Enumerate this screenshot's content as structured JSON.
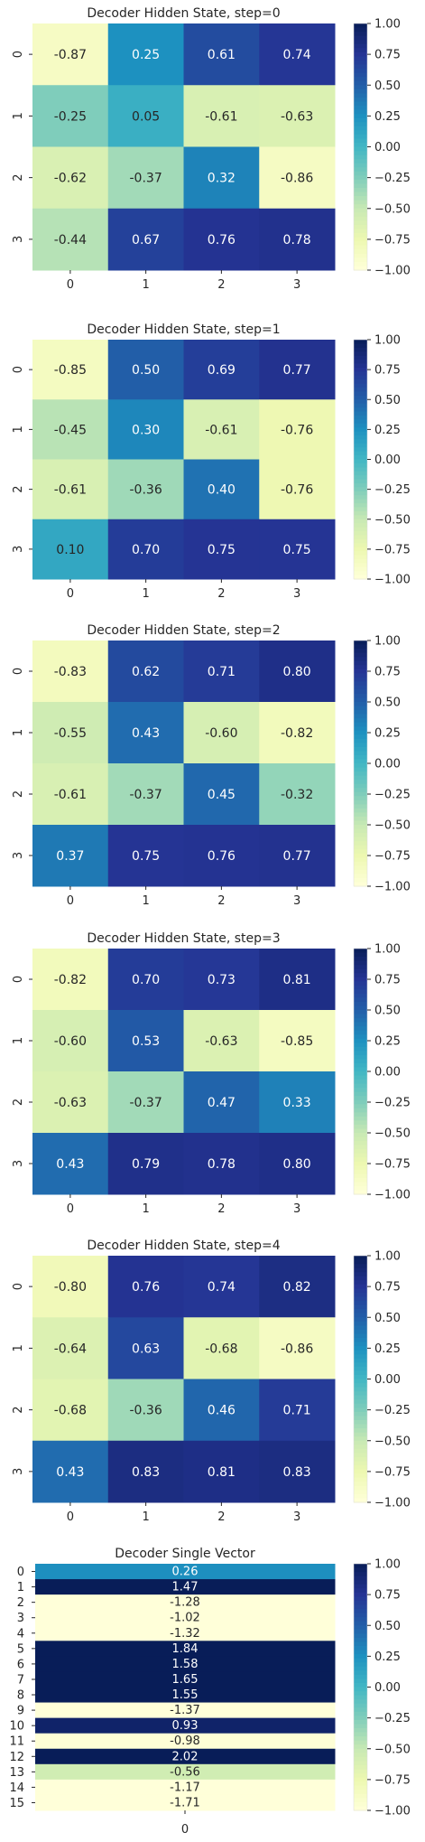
{
  "chart_data": [
    {
      "type": "heatmap",
      "title": "Decoder Hidden State, step=0",
      "x_ticks": [
        "0",
        "1",
        "2",
        "3"
      ],
      "y_ticks": [
        "0",
        "1",
        "2",
        "3"
      ],
      "values": [
        [
          -0.87,
          0.25,
          0.61,
          0.74
        ],
        [
          -0.25,
          0.05,
          -0.61,
          -0.63
        ],
        [
          -0.62,
          -0.37,
          0.32,
          -0.86
        ],
        [
          -0.44,
          0.67,
          0.76,
          0.78
        ]
      ],
      "value_labels": [
        [
          "-0.87",
          "0.25",
          "0.61",
          "0.74"
        ],
        [
          "-0.25",
          "0.05",
          "-0.61",
          "-0.63"
        ],
        [
          "-0.62",
          "-0.37",
          "0.32",
          "-0.86"
        ],
        [
          "-0.44",
          "0.67",
          "0.76",
          "0.78"
        ]
      ],
      "colorbar": {
        "vmin": -1.0,
        "vmax": 1.0,
        "ticks": [
          "1.00",
          "0.75",
          "0.50",
          "0.25",
          "0.00",
          "−0.25",
          "−0.50",
          "−0.75",
          "−1.00"
        ]
      },
      "colormap": "YlGnBu",
      "grid": false
    },
    {
      "type": "heatmap",
      "title": "Decoder Hidden State, step=1",
      "x_ticks": [
        "0",
        "1",
        "2",
        "3"
      ],
      "y_ticks": [
        "0",
        "1",
        "2",
        "3"
      ],
      "values": [
        [
          -0.85,
          0.5,
          0.69,
          0.77
        ],
        [
          -0.45,
          0.3,
          -0.61,
          -0.76
        ],
        [
          -0.61,
          -0.36,
          0.4,
          -0.76
        ],
        [
          0.1,
          0.7,
          0.75,
          0.75
        ]
      ],
      "value_labels": [
        [
          "-0.85",
          "0.50",
          "0.69",
          "0.77"
        ],
        [
          "-0.45",
          "0.30",
          "-0.61",
          "-0.76"
        ],
        [
          "-0.61",
          "-0.36",
          "0.40",
          "-0.76"
        ],
        [
          "0.10",
          "0.70",
          "0.75",
          "0.75"
        ]
      ],
      "colorbar": {
        "vmin": -1.0,
        "vmax": 1.0,
        "ticks": [
          "1.00",
          "0.75",
          "0.50",
          "0.25",
          "0.00",
          "−0.25",
          "−0.50",
          "−0.75",
          "−1.00"
        ]
      },
      "colormap": "YlGnBu",
      "grid": false
    },
    {
      "type": "heatmap",
      "title": "Decoder Hidden State, step=2",
      "x_ticks": [
        "0",
        "1",
        "2",
        "3"
      ],
      "y_ticks": [
        "0",
        "1",
        "2",
        "3"
      ],
      "values": [
        [
          -0.83,
          0.62,
          0.71,
          0.8
        ],
        [
          -0.55,
          0.43,
          -0.6,
          -0.82
        ],
        [
          -0.61,
          -0.37,
          0.45,
          -0.32
        ],
        [
          0.37,
          0.75,
          0.76,
          0.77
        ]
      ],
      "value_labels": [
        [
          "-0.83",
          "0.62",
          "0.71",
          "0.80"
        ],
        [
          "-0.55",
          "0.43",
          "-0.60",
          "-0.82"
        ],
        [
          "-0.61",
          "-0.37",
          "0.45",
          "-0.32"
        ],
        [
          "0.37",
          "0.75",
          "0.76",
          "0.77"
        ]
      ],
      "colorbar": {
        "vmin": -1.0,
        "vmax": 1.0,
        "ticks": [
          "1.00",
          "0.75",
          "0.50",
          "0.25",
          "0.00",
          "−0.25",
          "−0.50",
          "−0.75",
          "−1.00"
        ]
      },
      "colormap": "YlGnBu",
      "grid": false
    },
    {
      "type": "heatmap",
      "title": "Decoder Hidden State, step=3",
      "x_ticks": [
        "0",
        "1",
        "2",
        "3"
      ],
      "y_ticks": [
        "0",
        "1",
        "2",
        "3"
      ],
      "values": [
        [
          -0.82,
          0.7,
          0.73,
          0.81
        ],
        [
          -0.6,
          0.53,
          -0.63,
          -0.85
        ],
        [
          -0.63,
          -0.37,
          0.47,
          0.33
        ],
        [
          0.43,
          0.79,
          0.78,
          0.8
        ]
      ],
      "value_labels": [
        [
          "-0.82",
          "0.70",
          "0.73",
          "0.81"
        ],
        [
          "-0.60",
          "0.53",
          "-0.63",
          "-0.85"
        ],
        [
          "-0.63",
          "-0.37",
          "0.47",
          "0.33"
        ],
        [
          "0.43",
          "0.79",
          "0.78",
          "0.80"
        ]
      ],
      "colorbar": {
        "vmin": -1.0,
        "vmax": 1.0,
        "ticks": [
          "1.00",
          "0.75",
          "0.50",
          "0.25",
          "0.00",
          "−0.25",
          "−0.50",
          "−0.75",
          "−1.00"
        ]
      },
      "colormap": "YlGnBu",
      "grid": false
    },
    {
      "type": "heatmap",
      "title": "Decoder Hidden State, step=4",
      "x_ticks": [
        "0",
        "1",
        "2",
        "3"
      ],
      "y_ticks": [
        "0",
        "1",
        "2",
        "3"
      ],
      "values": [
        [
          -0.8,
          0.76,
          0.74,
          0.82
        ],
        [
          -0.64,
          0.63,
          -0.68,
          -0.86
        ],
        [
          -0.68,
          -0.36,
          0.46,
          0.71
        ],
        [
          0.43,
          0.83,
          0.81,
          0.83
        ]
      ],
      "value_labels": [
        [
          "-0.80",
          "0.76",
          "0.74",
          "0.82"
        ],
        [
          "-0.64",
          "0.63",
          "-0.68",
          "-0.86"
        ],
        [
          "-0.68",
          "-0.36",
          "0.46",
          "0.71"
        ],
        [
          "0.43",
          "0.83",
          "0.81",
          "0.83"
        ]
      ],
      "colorbar": {
        "vmin": -1.0,
        "vmax": 1.0,
        "ticks": [
          "1.00",
          "0.75",
          "0.50",
          "0.25",
          "0.00",
          "−0.25",
          "−0.50",
          "−0.75",
          "−1.00"
        ]
      },
      "colormap": "YlGnBu",
      "grid": false
    },
    {
      "type": "heatmap",
      "title": "Decoder Single Vector",
      "x_ticks": [
        "0"
      ],
      "y_ticks": [
        "0",
        "1",
        "2",
        "3",
        "4",
        "5",
        "6",
        "7",
        "8",
        "9",
        "10",
        "11",
        "12",
        "13",
        "14",
        "15"
      ],
      "values": [
        [
          0.26
        ],
        [
          1.47
        ],
        [
          -1.28
        ],
        [
          -1.02
        ],
        [
          -1.32
        ],
        [
          1.84
        ],
        [
          1.58
        ],
        [
          1.65
        ],
        [
          1.55
        ],
        [
          -1.37
        ],
        [
          0.93
        ],
        [
          -0.98
        ],
        [
          2.02
        ],
        [
          -0.56
        ],
        [
          -1.17
        ],
        [
          -1.71
        ]
      ],
      "value_labels": [
        [
          "0.26"
        ],
        [
          "1.47"
        ],
        [
          "-1.28"
        ],
        [
          "-1.02"
        ],
        [
          "-1.32"
        ],
        [
          "1.84"
        ],
        [
          "1.58"
        ],
        [
          "1.65"
        ],
        [
          "1.55"
        ],
        [
          "-1.37"
        ],
        [
          "0.93"
        ],
        [
          "-0.98"
        ],
        [
          "2.02"
        ],
        [
          "-0.56"
        ],
        [
          "-1.17"
        ],
        [
          "-1.71"
        ]
      ],
      "colorbar": {
        "vmin": -1.0,
        "vmax": 1.0,
        "ticks": [
          "1.00",
          "0.75",
          "0.50",
          "0.25",
          "0.00",
          "−0.25",
          "−0.50",
          "−0.75",
          "−1.00"
        ]
      },
      "colormap": "YlGnBu",
      "grid": false
    }
  ]
}
